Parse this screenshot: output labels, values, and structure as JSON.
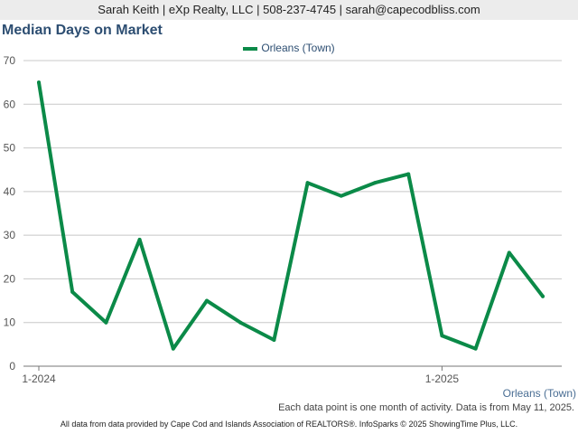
{
  "banner": {
    "text": "Sarah Keith | eXp Realty, LLC | 508-237-4745 | sarah@capecodbliss.com"
  },
  "footnote": "Each data point is one month of activity. Data is from May 11, 2025.",
  "credits": "All data from data provided by Cape Cod and Islands Association of REALTORS®. InfoSparks © 2025 ShowingTime Plus, LLC.",
  "colors": {
    "series": "#0b8a48",
    "title": "#2d4e72",
    "grid": "#c8c8c8"
  },
  "chart_data": {
    "type": "line",
    "title": "Median Days on Market",
    "xlabel": "",
    "ylabel": "",
    "ylim": [
      0,
      70
    ],
    "yticks": [
      0,
      10,
      20,
      30,
      40,
      50,
      60,
      70
    ],
    "grid": true,
    "legend_position": "top-center",
    "x": [
      "2024-01",
      "2024-02",
      "2024-03",
      "2024-04",
      "2024-05",
      "2024-06",
      "2024-07",
      "2024-08",
      "2024-09",
      "2024-10",
      "2024-11",
      "2024-12",
      "2025-01",
      "2025-02",
      "2025-03",
      "2025-04"
    ],
    "x_tick_labels": [
      {
        "month": "2024-01",
        "label": "1-2024"
      },
      {
        "month": "2025-01",
        "label": "1-2025"
      }
    ],
    "series": [
      {
        "name": "Orleans (Town)",
        "values": [
          65,
          17,
          10,
          29,
          4,
          15,
          10,
          6,
          42,
          39,
          42,
          44,
          7,
          4,
          26,
          16
        ]
      }
    ],
    "series_label": "Orleans (Town)"
  }
}
